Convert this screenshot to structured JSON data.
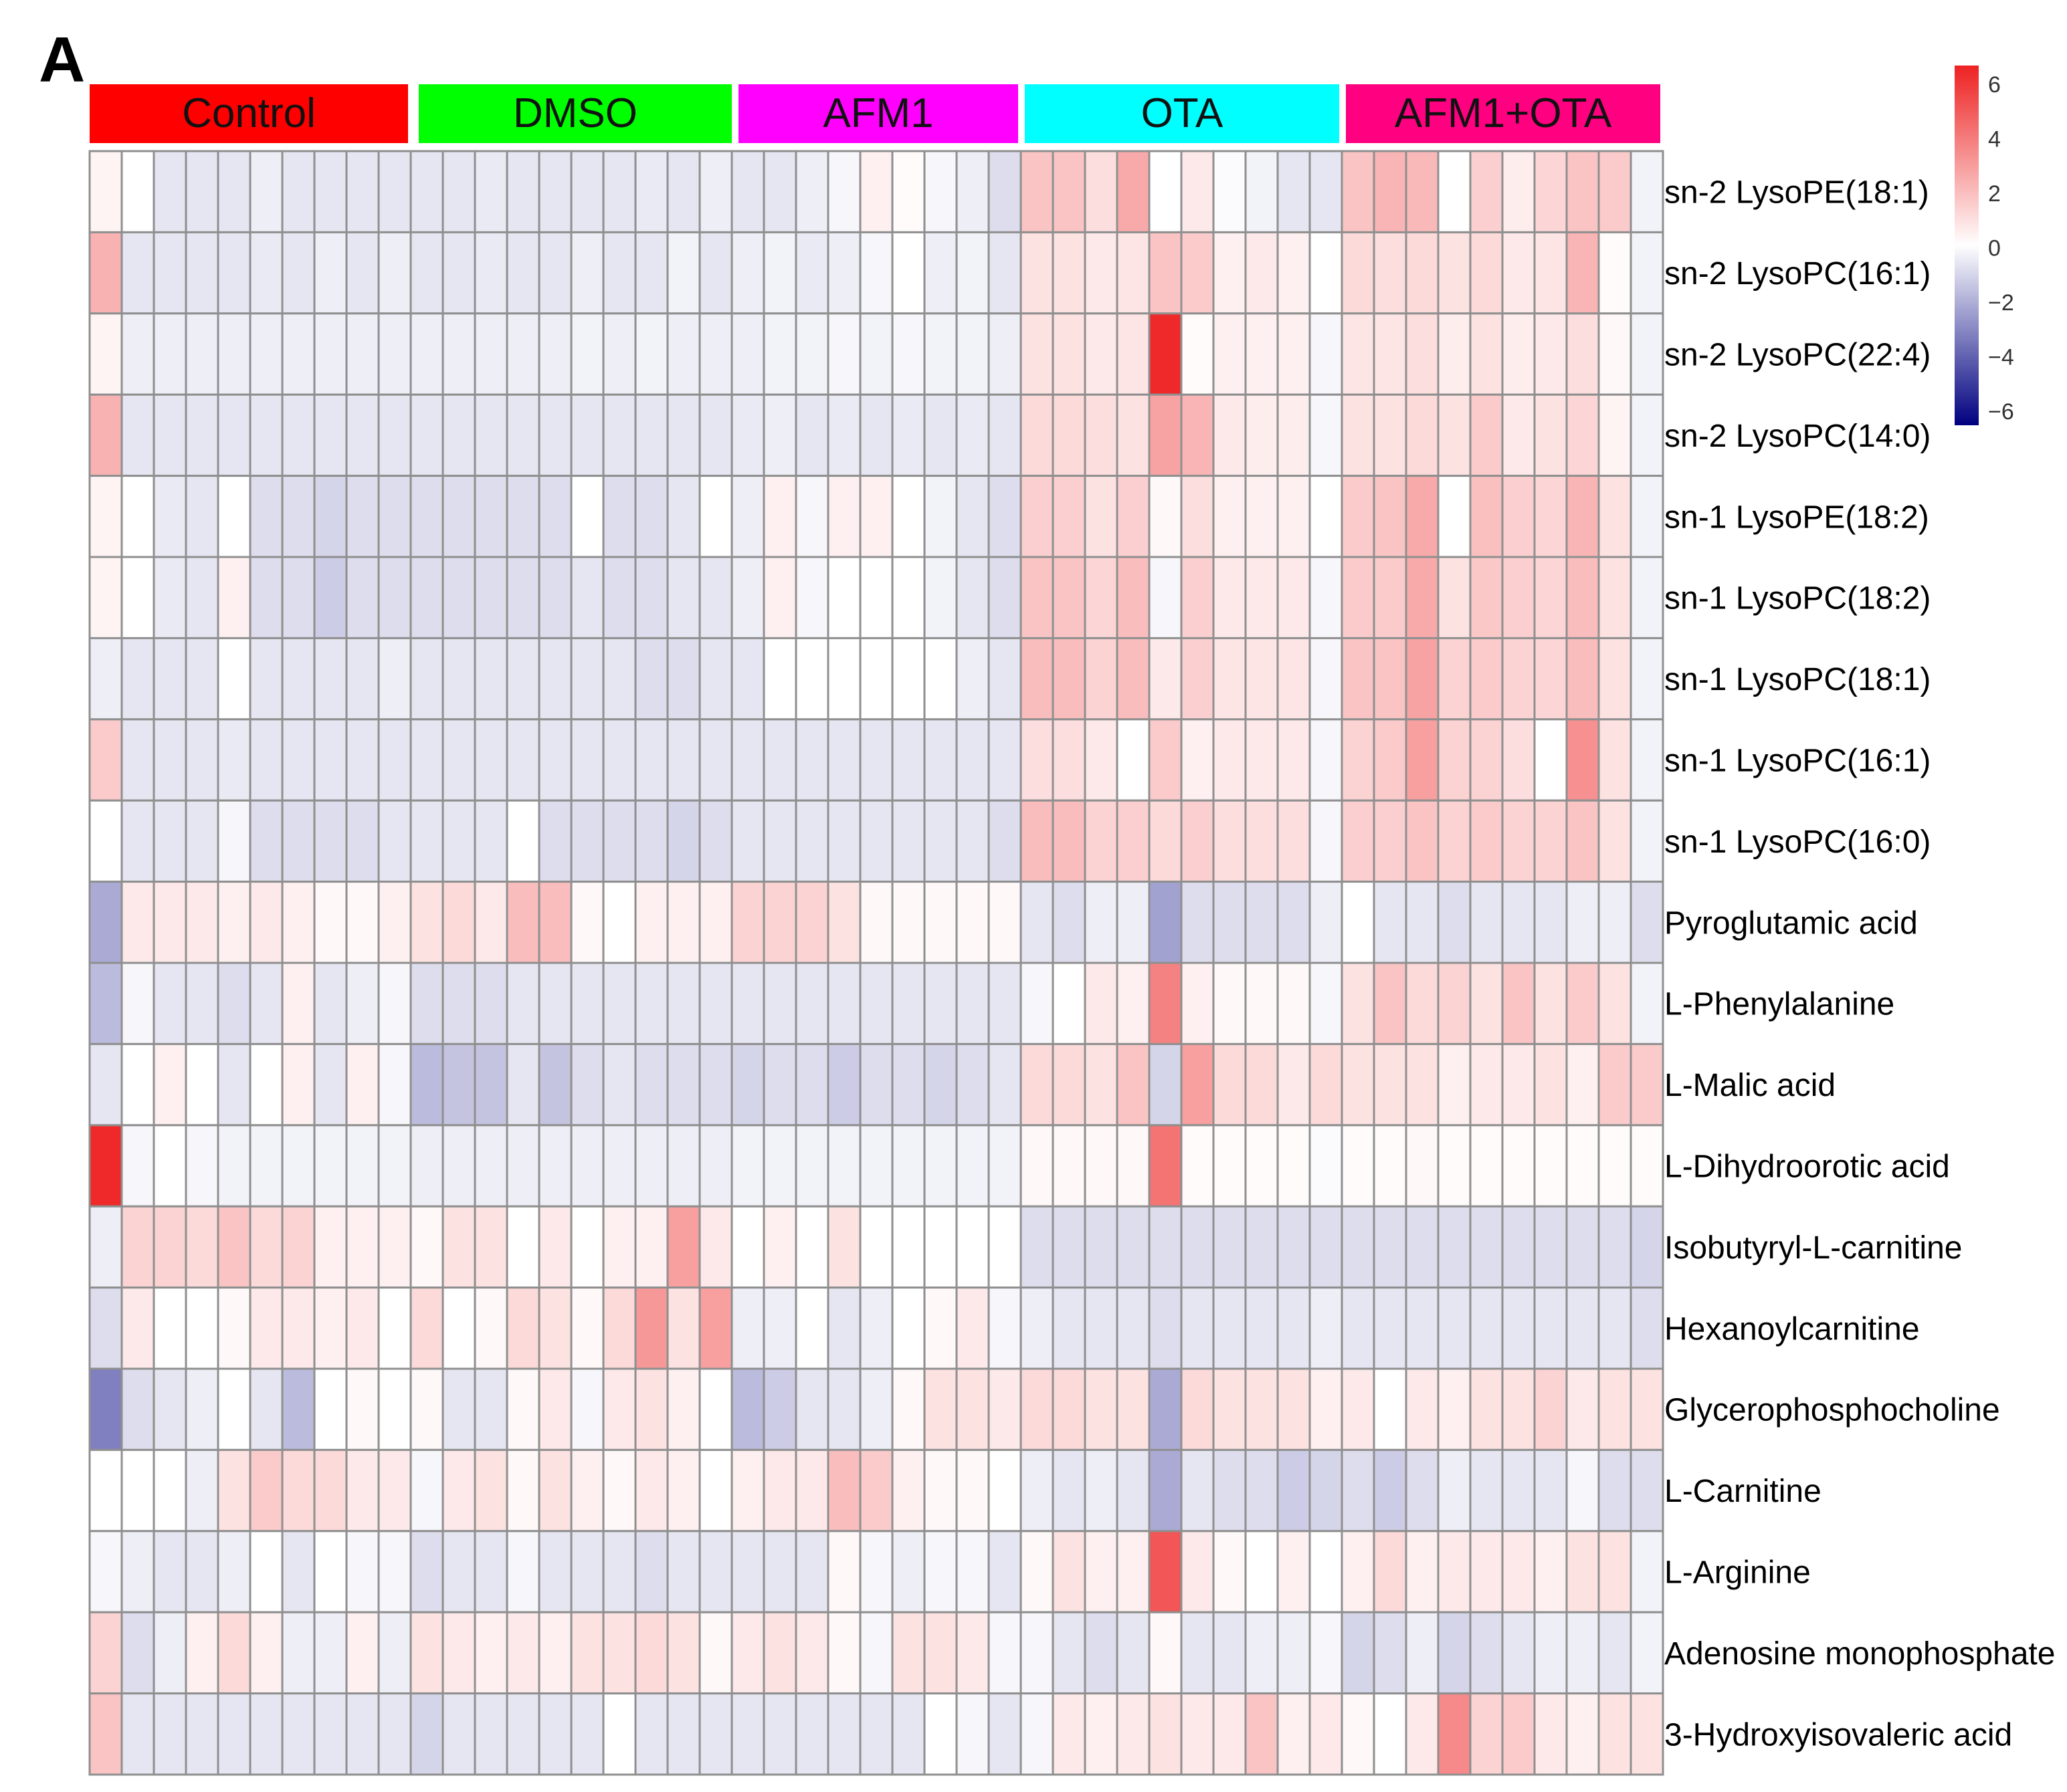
{
  "chart_data": {
    "type": "heatmap",
    "panel_label": "A",
    "groups": [
      {
        "name": "Control",
        "color": "#ff0000",
        "columns": 10
      },
      {
        "name": "DMSO",
        "color": "#00ff00",
        "columns": 10
      },
      {
        "name": "AFM1",
        "color": "#ff00ff",
        "columns": 9
      },
      {
        "name": "OTA",
        "color": "#00ffff",
        "columns": 10
      },
      {
        "name": "AFM1+OTA",
        "color": "#ff0080",
        "columns": 10
      }
    ],
    "rows": [
      "sn-2 LysoPE(18:1)",
      "sn-2 LysoPC(16:1)",
      "sn-2 LysoPC(22:4)",
      "sn-2 LysoPC(14:0)",
      "sn-1 LysoPE(18:2)",
      "sn-1 LysoPC(18:2)",
      "sn-1 LysoPC(18:1)",
      "sn-1 LysoPC(16:1)",
      "sn-1 LysoPC(16:0)",
      "Pyroglutamic acid",
      "L-Phenylalanine",
      "L-Malic acid",
      "L-Dihydroorotic acid",
      "Isobutyryl-L-carnitine",
      "Hexanoylcarnitine",
      "Glycerophosphocholine",
      "L-Carnitine",
      "L-Arginine",
      "Adenosine monophosphate",
      "3-Hydroxyisovaleric acid"
    ],
    "values": [
      [
        0.3,
        0,
        -0.6,
        -0.6,
        -0.6,
        -0.4,
        -0.6,
        -0.6,
        -0.6,
        -0.6,
        -0.6,
        -0.6,
        -0.5,
        -0.6,
        -0.6,
        -0.6,
        -0.6,
        -0.5,
        -0.6,
        -0.4,
        -0.6,
        -0.6,
        -0.4,
        -0.2,
        0.4,
        0.1,
        -0.2,
        -0.4,
        -0.8,
        1.6,
        1.6,
        0.9,
        2.3,
        0,
        0.6,
        -0.1,
        -0.3,
        -0.6,
        -0.6,
        1.6,
        2.0,
        1.9,
        0,
        1.3,
        0.5,
        1.1,
        1.6,
        1.4,
        -0.3
      ],
      [
        2.1,
        -0.6,
        -0.6,
        -0.6,
        -0.6,
        -0.5,
        -0.6,
        -0.4,
        -0.6,
        -0.4,
        -0.6,
        -0.6,
        -0.5,
        -0.6,
        -0.6,
        -0.4,
        -0.6,
        -0.6,
        -0.3,
        -0.6,
        -0.4,
        -0.3,
        -0.5,
        -0.4,
        -0.2,
        0,
        -0.4,
        -0.3,
        -0.6,
        0.8,
        0.8,
        0.6,
        0.7,
        1.6,
        1.4,
        0.4,
        0.6,
        0.4,
        0,
        1.0,
        0.9,
        1.0,
        0.8,
        1.0,
        0.6,
        0.7,
        2.0,
        0.1,
        -0.3
      ],
      [
        0.3,
        -0.4,
        -0.4,
        -0.4,
        -0.4,
        -0.4,
        -0.4,
        -0.4,
        -0.4,
        -0.4,
        -0.4,
        -0.4,
        -0.4,
        -0.4,
        -0.4,
        -0.3,
        -0.4,
        -0.3,
        -0.4,
        -0.4,
        -0.4,
        -0.3,
        -0.3,
        -0.2,
        -0.3,
        -0.2,
        -0.3,
        -0.3,
        -0.4,
        0.8,
        0.8,
        0.6,
        0.7,
        5.8,
        0.1,
        0.4,
        0.4,
        0.4,
        -0.2,
        0.7,
        0.7,
        0.9,
        0.5,
        0.8,
        0.5,
        0.6,
        0.9,
        0.2,
        -0.3
      ],
      [
        2.1,
        -0.6,
        -0.6,
        -0.6,
        -0.6,
        -0.6,
        -0.6,
        -0.6,
        -0.6,
        -0.6,
        -0.6,
        -0.6,
        -0.6,
        -0.6,
        -0.6,
        -0.6,
        -0.6,
        -0.6,
        -0.6,
        -0.6,
        -0.5,
        -0.4,
        -0.6,
        -0.5,
        -0.6,
        -0.5,
        -0.6,
        -0.5,
        -0.6,
        1.0,
        1.0,
        0.9,
        0.8,
        2.5,
        2.0,
        0.6,
        0.5,
        0.5,
        -0.2,
        0.8,
        0.8,
        1.0,
        0.8,
        1.4,
        0.6,
        0.8,
        1.1,
        0.3,
        -0.3
      ],
      [
        0.3,
        0,
        -0.5,
        -0.6,
        0,
        -0.8,
        -0.8,
        -1.0,
        -0.8,
        -0.8,
        -0.8,
        -0.8,
        -0.8,
        -0.8,
        -0.8,
        0,
        -0.8,
        -0.8,
        -0.6,
        0,
        -0.4,
        0.4,
        -0.2,
        0.4,
        0.4,
        0,
        -0.3,
        -0.6,
        -0.8,
        1.3,
        1.3,
        0.8,
        1.3,
        0.2,
        0.9,
        0.4,
        0.4,
        0.4,
        0,
        1.4,
        1.6,
        2.3,
        0,
        1.7,
        1.3,
        1.1,
        2.0,
        0.8,
        -0.3
      ],
      [
        0.3,
        0,
        -0.5,
        -0.6,
        0.4,
        -0.8,
        -0.8,
        -1.2,
        -0.8,
        -0.8,
        -0.8,
        -0.8,
        -0.8,
        -0.8,
        -0.8,
        -0.6,
        -0.8,
        -0.8,
        -0.6,
        -0.6,
        -0.4,
        0.4,
        -0.2,
        0,
        0,
        0,
        -0.3,
        -0.6,
        -0.8,
        1.6,
        1.6,
        1.1,
        1.8,
        -0.2,
        1.3,
        0.6,
        0.6,
        0.6,
        -0.2,
        1.4,
        1.4,
        2.3,
        0.8,
        1.5,
        1.3,
        1.1,
        1.8,
        0.8,
        -0.3
      ],
      [
        -0.4,
        -0.6,
        -0.6,
        -0.6,
        0,
        -0.6,
        -0.6,
        -0.6,
        -0.6,
        -0.4,
        -0.6,
        -0.6,
        -0.6,
        -0.6,
        -0.6,
        -0.6,
        -0.6,
        -0.8,
        -0.8,
        -0.6,
        -0.6,
        0,
        0,
        0,
        0,
        0,
        0,
        -0.4,
        -0.6,
        1.8,
        1.8,
        1.2,
        1.8,
        0.6,
        1.3,
        0.7,
        0.7,
        0.7,
        -0.2,
        1.6,
        1.6,
        2.5,
        1.2,
        1.4,
        1.2,
        1.1,
        1.8,
        0.8,
        -0.3
      ],
      [
        1.4,
        -0.6,
        -0.6,
        -0.6,
        -0.5,
        -0.6,
        -0.6,
        -0.6,
        -0.6,
        -0.6,
        -0.6,
        -0.6,
        -0.6,
        -0.6,
        -0.6,
        -0.6,
        -0.6,
        -0.6,
        -0.6,
        -0.6,
        -0.6,
        -0.6,
        -0.6,
        -0.6,
        -0.6,
        -0.6,
        -0.6,
        -0.6,
        -0.6,
        0.9,
        0.9,
        0.6,
        0,
        1.4,
        0.4,
        0.6,
        0.6,
        0.6,
        -0.2,
        1.2,
        1.4,
        2.6,
        1.2,
        1.2,
        0.9,
        0,
        3.0,
        0.8,
        -0.3
      ],
      [
        0,
        -0.6,
        -0.6,
        -0.6,
        -0.2,
        -0.8,
        -0.8,
        -0.8,
        -0.8,
        -0.6,
        -0.6,
        -0.6,
        -0.6,
        0,
        -0.8,
        -0.8,
        -0.8,
        -0.8,
        -1.0,
        -0.8,
        -0.6,
        -0.6,
        -0.6,
        -0.6,
        -0.6,
        -0.6,
        -0.6,
        -0.6,
        -0.8,
        1.8,
        1.8,
        1.2,
        1.3,
        1.0,
        1.3,
        0.9,
        0.9,
        0.9,
        -0.2,
        1.3,
        1.3,
        1.6,
        1.2,
        1.4,
        1.2,
        1.2,
        1.6,
        0.8,
        -0.3
      ],
      [
        -2.0,
        0.6,
        0.6,
        0.6,
        0.4,
        0.6,
        0.4,
        0.2,
        0.2,
        0.4,
        0.8,
        1.0,
        0.6,
        1.8,
        1.8,
        0.2,
        0,
        0.4,
        0.4,
        0.4,
        1.2,
        1.2,
        1.2,
        0.8,
        0.2,
        0.2,
        0.2,
        0.2,
        0.2,
        -0.6,
        -0.8,
        -0.4,
        -0.4,
        -2.2,
        -0.8,
        -0.8,
        -0.8,
        -0.8,
        -0.4,
        0,
        -0.6,
        -0.6,
        -0.8,
        -0.6,
        -0.6,
        -0.6,
        -0.4,
        -0.4,
        -0.8
      ],
      [
        -1.6,
        -0.2,
        -0.6,
        -0.6,
        -0.8,
        -0.6,
        0.4,
        -0.6,
        -0.4,
        -0.2,
        -0.8,
        -0.8,
        -0.8,
        -0.6,
        -0.6,
        -0.6,
        -0.6,
        -0.6,
        -0.6,
        -0.6,
        -0.6,
        -0.6,
        -0.6,
        -0.6,
        -0.6,
        -0.6,
        -0.6,
        -0.6,
        -0.6,
        -0.2,
        0,
        0.6,
        0.4,
        3.4,
        0.4,
        0.2,
        0.2,
        0.2,
        -0.2,
        0.8,
        1.6,
        1.0,
        1.2,
        0.8,
        1.6,
        0.8,
        1.4,
        0.8,
        -0.3
      ],
      [
        -0.6,
        0,
        0.4,
        0,
        -0.6,
        0,
        0.4,
        -0.6,
        0.4,
        -0.2,
        -1.6,
        -1.4,
        -1.4,
        -0.6,
        -1.4,
        -0.8,
        -0.6,
        -0.8,
        -0.8,
        -0.8,
        -1.0,
        -0.8,
        -0.8,
        -1.2,
        -0.8,
        -0.8,
        -1.0,
        -0.8,
        -0.6,
        1.0,
        1.0,
        0.8,
        1.6,
        -1.0,
        2.6,
        1.0,
        1.0,
        0.6,
        1.0,
        0.8,
        0.8,
        0.8,
        0.4,
        0.6,
        0.6,
        0.8,
        0.4,
        1.4,
        1.4
      ],
      [
        5.8,
        -0.2,
        0,
        -0.2,
        -0.3,
        -0.3,
        -0.3,
        -0.3,
        -0.3,
        -0.3,
        -0.4,
        -0.4,
        -0.4,
        -0.4,
        -0.4,
        -0.4,
        -0.4,
        -0.4,
        -0.4,
        -0.4,
        -0.3,
        -0.3,
        -0.3,
        -0.3,
        -0.3,
        -0.3,
        -0.3,
        -0.3,
        -0.3,
        0.2,
        0.2,
        0.2,
        0.2,
        3.8,
        0.1,
        0.1,
        0.1,
        0.1,
        -0.1,
        0.1,
        0.1,
        0.2,
        0.1,
        0.1,
        0.1,
        0.1,
        0.1,
        0.1,
        0.1
      ],
      [
        -0.4,
        1.2,
        1.2,
        1.0,
        1.6,
        1.0,
        1.2,
        0.4,
        0.4,
        0.4,
        0.2,
        0.8,
        0.8,
        0,
        0.6,
        0,
        0.4,
        0.4,
        2.6,
        0.6,
        0,
        0.4,
        0,
        0.8,
        0,
        0,
        0,
        0,
        0,
        -0.8,
        -0.8,
        -0.8,
        -0.8,
        -0.8,
        -0.8,
        -0.8,
        -0.8,
        -0.8,
        -0.8,
        -0.8,
        -0.8,
        -0.8,
        -0.8,
        -0.8,
        -0.8,
        -0.8,
        -0.8,
        -0.8,
        -1.0
      ],
      [
        -0.8,
        0.6,
        0,
        0,
        0.2,
        0.6,
        0.6,
        0.4,
        0.6,
        0,
        1.0,
        0,
        0.2,
        1.0,
        0.8,
        0.2,
        1.0,
        2.8,
        0.8,
        2.6,
        -0.4,
        -0.4,
        0,
        -0.6,
        -0.4,
        0,
        0.2,
        0.6,
        -0.2,
        -0.4,
        -0.6,
        -0.6,
        -0.6,
        -0.8,
        -0.6,
        -0.6,
        -0.6,
        -0.6,
        -0.4,
        -0.6,
        -0.6,
        -0.6,
        -0.6,
        -0.6,
        -0.6,
        -0.6,
        -0.6,
        -0.6,
        -0.8
      ],
      [
        -3.0,
        -0.8,
        -0.6,
        -0.4,
        0,
        -0.6,
        -1.6,
        0,
        0.2,
        0,
        0.2,
        -0.6,
        -0.6,
        0.2,
        0.6,
        -0.2,
        0.6,
        0.8,
        0.4,
        0,
        -1.6,
        -1.2,
        -0.6,
        -0.6,
        -0.4,
        0.2,
        0.8,
        0.8,
        0.6,
        1.0,
        1.0,
        0.8,
        0.8,
        -2.0,
        1.0,
        0.8,
        0.8,
        0.8,
        0.4,
        0.6,
        0,
        0.6,
        0.4,
        0.8,
        0.8,
        1.2,
        0.6,
        0.8,
        0.8
      ],
      [
        0,
        0,
        0,
        -0.4,
        0.8,
        1.4,
        1.0,
        1.0,
        0.6,
        0.6,
        -0.2,
        0.6,
        0.8,
        0.2,
        0.8,
        0.4,
        0.2,
        0.6,
        0.4,
        0,
        0.4,
        0.6,
        0.6,
        1.8,
        1.4,
        0.4,
        0.2,
        0.2,
        0,
        -0.4,
        -0.6,
        -0.4,
        -0.6,
        -2.0,
        -0.6,
        -0.8,
        -0.8,
        -1.2,
        -1.0,
        -0.8,
        -1.2,
        -0.8,
        -0.4,
        -0.6,
        -0.6,
        -0.6,
        -0.2,
        -0.8,
        -0.8
      ],
      [
        -0.2,
        -0.4,
        -0.6,
        -0.6,
        -0.4,
        0,
        -0.6,
        0,
        -0.2,
        -0.2,
        -0.8,
        -0.6,
        -0.6,
        -0.2,
        -0.6,
        -0.6,
        -0.6,
        -0.8,
        -0.6,
        -0.6,
        -0.6,
        -0.6,
        -0.6,
        0.2,
        -0.2,
        -0.4,
        -0.2,
        -0.2,
        -0.6,
        0.2,
        0.8,
        0.4,
        0.4,
        4.6,
        0.6,
        0.2,
        0,
        0.4,
        0,
        0.4,
        1.0,
        0.4,
        0.6,
        0.6,
        0.6,
        0.4,
        0.8,
        0.8,
        -0.3
      ],
      [
        1.2,
        -0.8,
        -0.4,
        0.4,
        1.0,
        0.4,
        -0.4,
        -0.4,
        0.4,
        -0.4,
        0.8,
        0.6,
        0.4,
        0.6,
        0.4,
        0.8,
        0.8,
        1.0,
        0.8,
        0.2,
        0.6,
        0.8,
        0.6,
        0.2,
        -0.2,
        0.8,
        0.8,
        0.6,
        -0.2,
        -0.2,
        -0.6,
        -0.8,
        -0.6,
        0.2,
        -0.6,
        -0.6,
        -0.4,
        -0.4,
        -0.2,
        -1.0,
        -0.8,
        -0.4,
        -1.0,
        -0.8,
        -0.6,
        -0.4,
        -0.4,
        -0.6,
        -0.3
      ],
      [
        1.6,
        -0.6,
        -0.6,
        -0.6,
        -0.6,
        -0.6,
        -0.6,
        -0.6,
        -0.6,
        -0.6,
        -1.0,
        -0.6,
        -0.6,
        -0.6,
        -0.6,
        -0.6,
        0,
        -0.6,
        -0.6,
        -0.6,
        -0.6,
        -0.6,
        -0.6,
        -0.6,
        -0.6,
        -0.6,
        0,
        -0.2,
        -0.6,
        -0.2,
        0.6,
        0.4,
        0.6,
        0.8,
        0.6,
        0.6,
        1.6,
        0.4,
        0.6,
        0.2,
        0,
        0.6,
        3.2,
        1.2,
        1.4,
        0.6,
        0.4,
        0.8,
        0.8
      ]
    ],
    "colorbar": {
      "min": -6,
      "max": 6,
      "ticks": [
        "6",
        "4",
        "2",
        "0",
        "−2",
        "−4",
        "−6"
      ],
      "colors": [
        "#000080",
        "#ffffff",
        "#ee2222"
      ]
    }
  }
}
